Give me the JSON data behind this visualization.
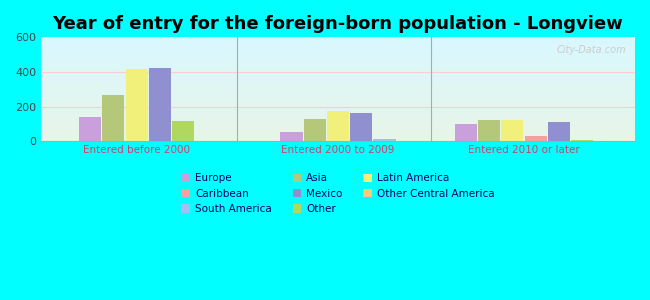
{
  "title": "Year of entry for the foreign-born population - Longview",
  "categories": [
    "Entered before 2000",
    "Entered 2000 to 2009",
    "Entered 2010 or later"
  ],
  "bar_order": [
    "Europe",
    "Asia",
    "Latin America",
    "Mexico",
    "Other"
  ],
  "values": {
    "Europe": [
      140,
      55,
      100
    ],
    "Asia": [
      265,
      130,
      120
    ],
    "Latin America": [
      415,
      175,
      125
    ],
    "Mexico": [
      420,
      165,
      110
    ],
    "Caribbean": [
      0,
      0,
      30
    ],
    "Other Central America": [
      0,
      0,
      0
    ],
    "South America": [
      0,
      10,
      0
    ],
    "Other": [
      115,
      0,
      5
    ]
  },
  "all_bar_order": [
    [
      "Europe",
      "Asia",
      "Latin America",
      "Mexico",
      "Other"
    ],
    [
      "Europe",
      "Asia",
      "Latin America",
      "Mexico",
      "South America"
    ],
    [
      "Europe",
      "Asia",
      "Latin America",
      "Caribbean",
      "Mexico",
      "Other"
    ]
  ],
  "colors": {
    "Europe": "#c9a0dc",
    "Asia": "#b5c87a",
    "Latin America": "#f0f07a",
    "Caribbean": "#f4a0a0",
    "Mexico": "#9090d0",
    "Other Central America": "#f5c882",
    "South America": "#a0c0f0",
    "Other": "#b0d860"
  },
  "ylim": [
    0,
    600
  ],
  "yticks": [
    0,
    200,
    400,
    600
  ],
  "outer_bg": "#00ffff",
  "title_fontsize": 13,
  "axis_label_color": "#cc4466",
  "bar_width": 0.09,
  "group_centers": [
    0.32,
    1.1,
    1.82
  ],
  "sep_lines": [
    0.71,
    1.46
  ],
  "xlim": [
    -0.05,
    2.25
  ],
  "legend_items": [
    [
      "Europe",
      "#c9a0dc"
    ],
    [
      "Caribbean",
      "#f4a0a0"
    ],
    [
      "South America",
      "#a0c0f0"
    ],
    [
      "Asia",
      "#b5c87a"
    ],
    [
      "Mexico",
      "#9090d0"
    ],
    [
      "Other",
      "#b0d860"
    ],
    [
      "Latin America",
      "#f0f07a"
    ],
    [
      "Other Central America",
      "#f5c882"
    ]
  ]
}
